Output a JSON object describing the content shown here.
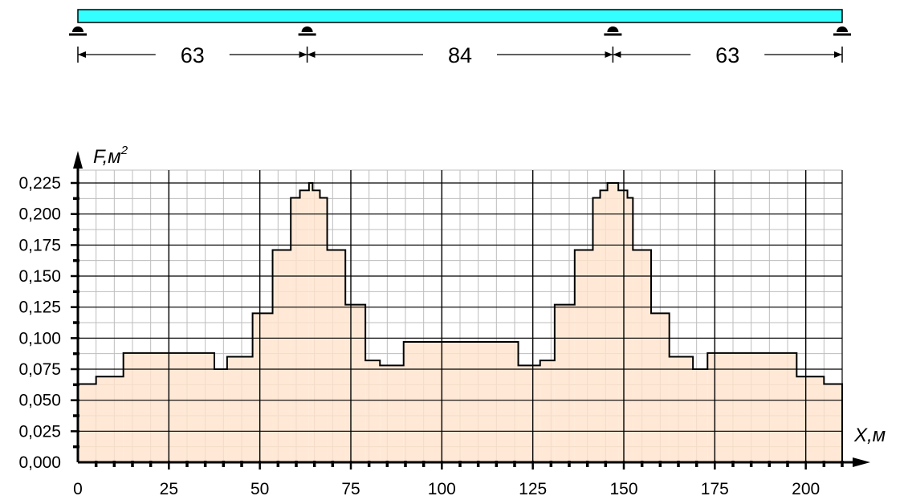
{
  "beam": {
    "spans": [
      "63",
      "84",
      "63"
    ],
    "span_lengths": [
      63,
      84,
      63
    ],
    "fill_color": "#33ffff"
  },
  "chart_data": {
    "type": "area",
    "xlabel": "X,м",
    "ylabel_main": "F,м",
    "ylabel_sup": "2",
    "xlim": [
      0,
      210
    ],
    "ylim": [
      0,
      0.225
    ],
    "x_ticks": [
      "0",
      "25",
      "50",
      "75",
      "100",
      "125",
      "150",
      "175",
      "200"
    ],
    "y_ticks": [
      "0,000",
      "0,025",
      "0,050",
      "0,075",
      "0,100",
      "0,125",
      "0,150",
      "0,175",
      "0,200",
      "0,225"
    ],
    "grid": true,
    "fill_color": "#ffe4cc",
    "steps": [
      {
        "x0": 0,
        "x1": 5,
        "y": 0.063
      },
      {
        "x0": 5,
        "x1": 12.5,
        "y": 0.069
      },
      {
        "x0": 12.5,
        "x1": 37.5,
        "y": 0.088
      },
      {
        "x0": 37.5,
        "x1": 41,
        "y": 0.075
      },
      {
        "x0": 41,
        "x1": 48,
        "y": 0.085
      },
      {
        "x0": 48,
        "x1": 53.5,
        "y": 0.12
      },
      {
        "x0": 53.5,
        "x1": 58.5,
        "y": 0.171
      },
      {
        "x0": 58.5,
        "x1": 61,
        "y": 0.213
      },
      {
        "x0": 61,
        "x1": 63.5,
        "y": 0.219
      },
      {
        "x0": 63.5,
        "x1": 64.5,
        "y": 0.225
      },
      {
        "x0": 64.5,
        "x1": 66.5,
        "y": 0.219
      },
      {
        "x0": 66.5,
        "x1": 68.5,
        "y": 0.213
      },
      {
        "x0": 68.5,
        "x1": 73.5,
        "y": 0.171
      },
      {
        "x0": 73.5,
        "x1": 79,
        "y": 0.127
      },
      {
        "x0": 79,
        "x1": 83,
        "y": 0.082
      },
      {
        "x0": 83,
        "x1": 89.5,
        "y": 0.078
      },
      {
        "x0": 89.5,
        "x1": 121,
        "y": 0.097
      },
      {
        "x0": 121,
        "x1": 127,
        "y": 0.078
      },
      {
        "x0": 127,
        "x1": 131,
        "y": 0.082
      },
      {
        "x0": 131,
        "x1": 136.5,
        "y": 0.127
      },
      {
        "x0": 136.5,
        "x1": 141.5,
        "y": 0.171
      },
      {
        "x0": 141.5,
        "x1": 143.5,
        "y": 0.213
      },
      {
        "x0": 143.5,
        "x1": 145.5,
        "y": 0.219
      },
      {
        "x0": 145.5,
        "x1": 148.5,
        "y": 0.225
      },
      {
        "x0": 148.5,
        "x1": 151,
        "y": 0.219
      },
      {
        "x0": 151,
        "x1": 152.5,
        "y": 0.213
      },
      {
        "x0": 152.5,
        "x1": 157.5,
        "y": 0.171
      },
      {
        "x0": 157.5,
        "x1": 162.5,
        "y": 0.12
      },
      {
        "x0": 162.5,
        "x1": 169,
        "y": 0.085
      },
      {
        "x0": 169,
        "x1": 173,
        "y": 0.075
      },
      {
        "x0": 173,
        "x1": 197.5,
        "y": 0.088
      },
      {
        "x0": 197.5,
        "x1": 205,
        "y": 0.069
      },
      {
        "x0": 205,
        "x1": 210,
        "y": 0.063
      }
    ]
  }
}
